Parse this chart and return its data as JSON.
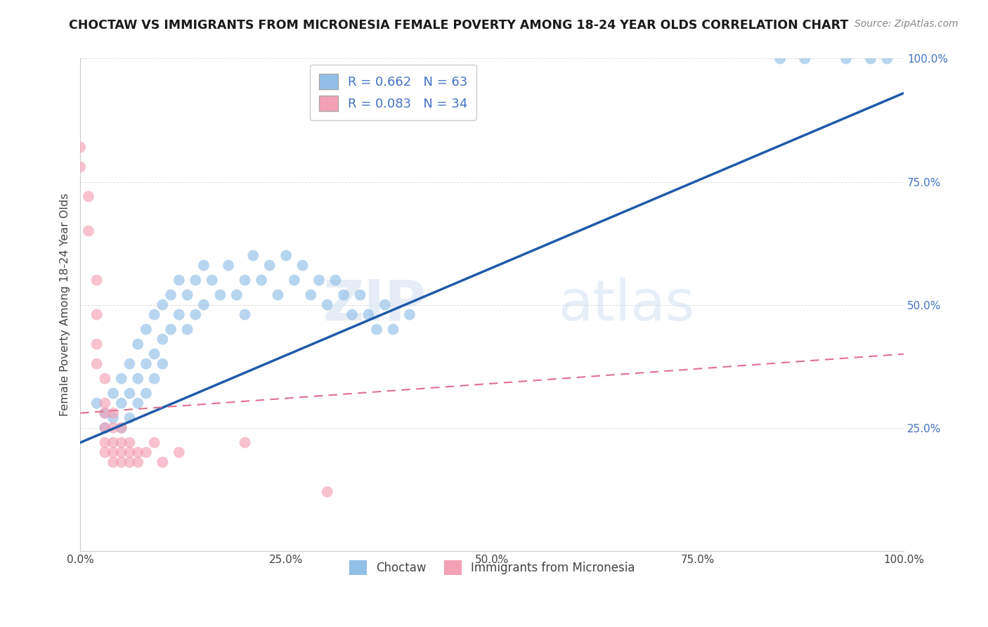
{
  "title": "CHOCTAW VS IMMIGRANTS FROM MICRONESIA FEMALE POVERTY AMONG 18-24 YEAR OLDS CORRELATION CHART",
  "source": "Source: ZipAtlas.com",
  "ylabel": "Female Poverty Among 18-24 Year Olds",
  "xlim": [
    0,
    1.0
  ],
  "ylim": [
    0,
    1.0
  ],
  "xticks": [
    0.0,
    0.25,
    0.5,
    0.75,
    1.0
  ],
  "xtick_labels": [
    "0.0%",
    "25.0%",
    "50.0%",
    "75.0%",
    "100.0%"
  ],
  "ytick_labels": [
    "25.0%",
    "50.0%",
    "75.0%",
    "100.0%"
  ],
  "yticks": [
    0.25,
    0.5,
    0.75,
    1.0
  ],
  "choctaw_color": "#92bfe8",
  "micronesia_color": "#f4a0b5",
  "choctaw_line_color": "#1f5aa8",
  "micronesia_line_color": "#e07090",
  "choctaw_R": 0.662,
  "choctaw_N": 63,
  "micronesia_R": 0.083,
  "micronesia_N": 34,
  "legend_label_choctaw": "Choctaw",
  "legend_label_micronesia": "Immigrants from Micronesia",
  "watermark_zip": "ZIP",
  "watermark_atlas": "atlas",
  "choctaw_scatter": [
    [
      0.02,
      0.3
    ],
    [
      0.03,
      0.28
    ],
    [
      0.03,
      0.25
    ],
    [
      0.04,
      0.32
    ],
    [
      0.04,
      0.27
    ],
    [
      0.05,
      0.35
    ],
    [
      0.05,
      0.3
    ],
    [
      0.05,
      0.25
    ],
    [
      0.06,
      0.38
    ],
    [
      0.06,
      0.32
    ],
    [
      0.06,
      0.27
    ],
    [
      0.07,
      0.42
    ],
    [
      0.07,
      0.35
    ],
    [
      0.07,
      0.3
    ],
    [
      0.08,
      0.45
    ],
    [
      0.08,
      0.38
    ],
    [
      0.08,
      0.32
    ],
    [
      0.09,
      0.48
    ],
    [
      0.09,
      0.4
    ],
    [
      0.09,
      0.35
    ],
    [
      0.1,
      0.5
    ],
    [
      0.1,
      0.43
    ],
    [
      0.1,
      0.38
    ],
    [
      0.11,
      0.52
    ],
    [
      0.11,
      0.45
    ],
    [
      0.12,
      0.55
    ],
    [
      0.12,
      0.48
    ],
    [
      0.13,
      0.52
    ],
    [
      0.13,
      0.45
    ],
    [
      0.14,
      0.55
    ],
    [
      0.14,
      0.48
    ],
    [
      0.15,
      0.58
    ],
    [
      0.15,
      0.5
    ],
    [
      0.16,
      0.55
    ],
    [
      0.17,
      0.52
    ],
    [
      0.18,
      0.58
    ],
    [
      0.19,
      0.52
    ],
    [
      0.2,
      0.55
    ],
    [
      0.2,
      0.48
    ],
    [
      0.21,
      0.6
    ],
    [
      0.22,
      0.55
    ],
    [
      0.23,
      0.58
    ],
    [
      0.24,
      0.52
    ],
    [
      0.25,
      0.6
    ],
    [
      0.26,
      0.55
    ],
    [
      0.27,
      0.58
    ],
    [
      0.28,
      0.52
    ],
    [
      0.29,
      0.55
    ],
    [
      0.3,
      0.5
    ],
    [
      0.31,
      0.55
    ],
    [
      0.32,
      0.52
    ],
    [
      0.33,
      0.48
    ],
    [
      0.34,
      0.52
    ],
    [
      0.35,
      0.48
    ],
    [
      0.36,
      0.45
    ],
    [
      0.37,
      0.5
    ],
    [
      0.38,
      0.45
    ],
    [
      0.4,
      0.48
    ],
    [
      0.85,
      1.0
    ],
    [
      0.88,
      1.0
    ],
    [
      0.93,
      1.0
    ],
    [
      0.96,
      1.0
    ],
    [
      0.98,
      1.0
    ]
  ],
  "micronesia_scatter": [
    [
      0.0,
      0.82
    ],
    [
      0.0,
      0.78
    ],
    [
      0.01,
      0.72
    ],
    [
      0.01,
      0.65
    ],
    [
      0.02,
      0.55
    ],
    [
      0.02,
      0.48
    ],
    [
      0.02,
      0.42
    ],
    [
      0.02,
      0.38
    ],
    [
      0.03,
      0.35
    ],
    [
      0.03,
      0.3
    ],
    [
      0.03,
      0.28
    ],
    [
      0.03,
      0.25
    ],
    [
      0.03,
      0.22
    ],
    [
      0.03,
      0.2
    ],
    [
      0.04,
      0.28
    ],
    [
      0.04,
      0.25
    ],
    [
      0.04,
      0.22
    ],
    [
      0.04,
      0.2
    ],
    [
      0.04,
      0.18
    ],
    [
      0.05,
      0.25
    ],
    [
      0.05,
      0.22
    ],
    [
      0.05,
      0.2
    ],
    [
      0.05,
      0.18
    ],
    [
      0.06,
      0.22
    ],
    [
      0.06,
      0.2
    ],
    [
      0.06,
      0.18
    ],
    [
      0.07,
      0.2
    ],
    [
      0.07,
      0.18
    ],
    [
      0.08,
      0.2
    ],
    [
      0.09,
      0.22
    ],
    [
      0.1,
      0.18
    ],
    [
      0.12,
      0.2
    ],
    [
      0.2,
      0.22
    ],
    [
      0.3,
      0.12
    ]
  ],
  "choctaw_line": [
    0.0,
    0.22,
    1.0,
    0.93
  ],
  "micronesia_line": [
    0.0,
    0.3,
    0.35,
    0.35
  ]
}
